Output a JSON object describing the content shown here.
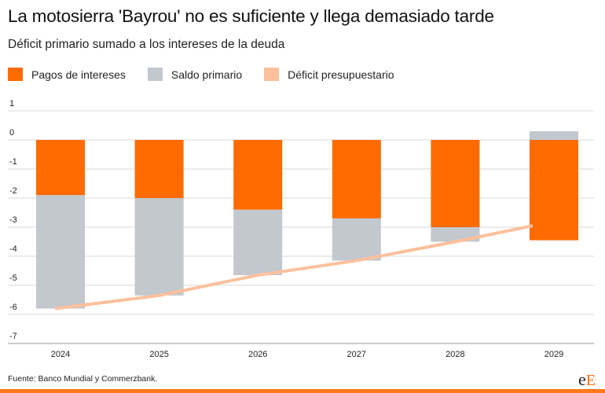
{
  "header": {
    "title": "La motosierra 'Bayrou' no es suficiente y llega demasiado tarde",
    "subtitle": "Déficit primario sumado a los intereses de la deuda"
  },
  "footer": {
    "source": "Fuente: Banco Mundial y Commerzbank.",
    "logo_left": "e",
    "logo_right": "E"
  },
  "colors": {
    "intereses": "#ff6b00",
    "saldo": "#c3c7ce",
    "deficit": "#fcc09c",
    "grid": "#d9d9d9",
    "axis": "#999999"
  },
  "chart_data": {
    "type": "bar",
    "stacked": true,
    "categories": [
      "2024",
      "2025",
      "2026",
      "2027",
      "2028",
      "2029"
    ],
    "series": [
      {
        "name": "Pagos de intereses",
        "type": "bar",
        "values": [
          -1.9,
          -2.0,
          -2.4,
          -2.7,
          -3.0,
          -3.45
        ]
      },
      {
        "name": "Saldo primario",
        "type": "bar",
        "values": [
          -3.9,
          -3.35,
          -2.25,
          -1.45,
          -0.5,
          0.3
        ]
      },
      {
        "name": "Déficit presupuestario",
        "type": "line",
        "values": [
          -5.8,
          -5.35,
          -4.65,
          -4.15,
          -3.5,
          -2.95
        ]
      }
    ],
    "yticks": [
      1,
      0,
      -1,
      -2,
      -3,
      -4,
      -5,
      -6,
      -7
    ],
    "ylim": [
      -7,
      1.2
    ],
    "grid": true,
    "legend": "top-left"
  }
}
